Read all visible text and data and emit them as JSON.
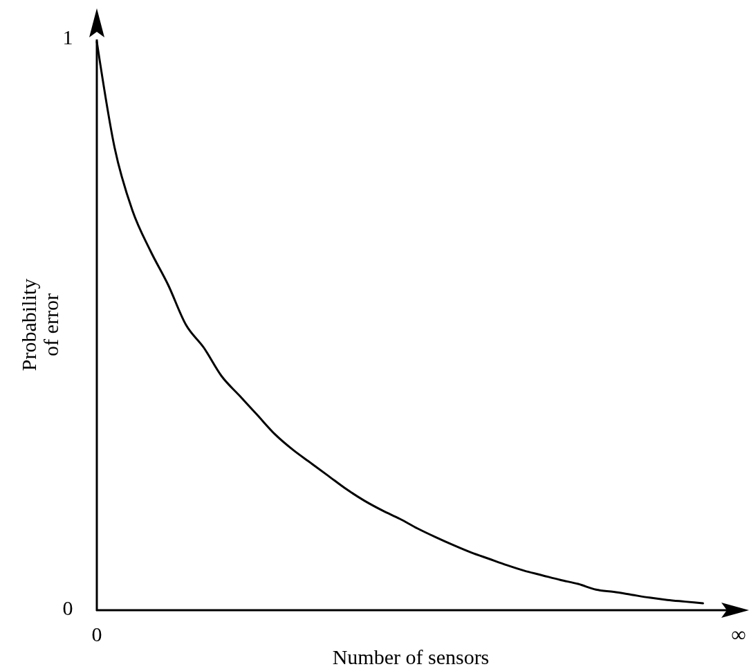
{
  "chart_data": {
    "type": "line",
    "xlabel": "Number of sensors",
    "ylabel": "Probability of error",
    "categories": [
      "0",
      null,
      null,
      null,
      null,
      null,
      null,
      null,
      null,
      null,
      null,
      null,
      null,
      null,
      null,
      null,
      null,
      null,
      null,
      null,
      null,
      null,
      null,
      null,
      null,
      null,
      null,
      null,
      null,
      null,
      null,
      null,
      null,
      null,
      null,
      null,
      "∞"
    ],
    "ylim": [
      0,
      1
    ],
    "yticks": [
      0,
      1
    ],
    "marker": "none",
    "line_style": "solid",
    "series": [
      {
        "color": "#000000",
        "values": [
          0.996,
          0.81,
          0.7,
          0.63,
          0.57,
          0.5,
          0.46,
          0.41,
          0.376,
          0.342,
          0.308,
          0.281,
          0.258,
          0.235,
          0.212,
          0.192,
          0.175,
          0.16,
          0.143,
          0.128,
          0.114,
          0.101,
          0.09,
          0.079,
          0.069,
          0.061,
          0.053,
          0.046,
          0.036,
          0.032,
          0.027,
          0.022,
          0.018,
          0.015,
          0.012,
          null,
          null
        ]
      }
    ]
  }
}
